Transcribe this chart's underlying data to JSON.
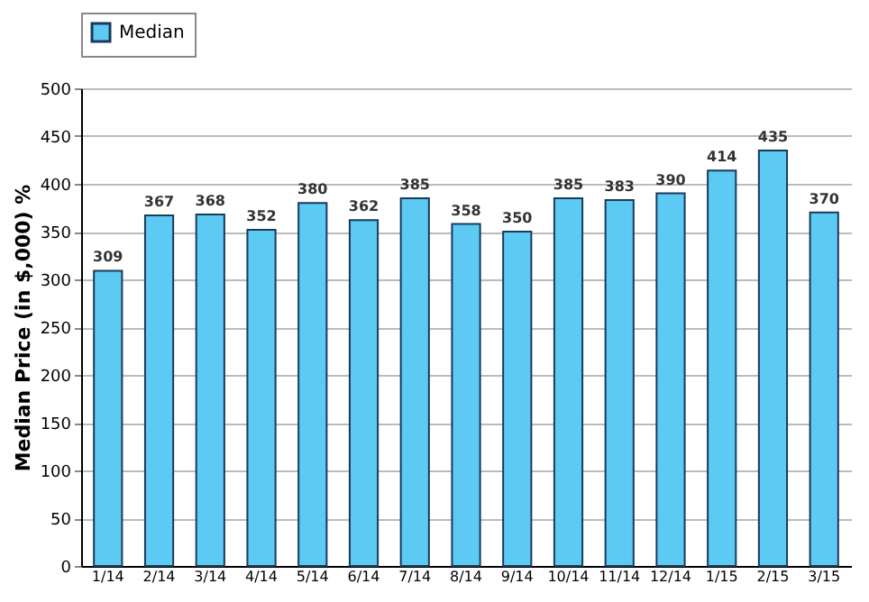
{
  "chart_data": {
    "type": "bar",
    "ylabel": "Median Price (in $,000) %",
    "categories": [
      "1/14",
      "2/14",
      "3/14",
      "4/14",
      "5/14",
      "6/14",
      "7/14",
      "8/14",
      "9/14",
      "10/14",
      "11/14",
      "12/14",
      "1/15",
      "2/15",
      "3/15"
    ],
    "series": [
      {
        "name": "Median",
        "color": "#5ccaf2",
        "values": [
          309,
          367,
          368,
          352,
          380,
          362,
          385,
          358,
          350,
          385,
          383,
          390,
          414,
          435,
          370
        ]
      }
    ],
    "ylim": [
      0,
      500
    ],
    "yticks": [
      0,
      50,
      100,
      150,
      200,
      250,
      300,
      350,
      400,
      450,
      500
    ],
    "grid": "y",
    "legend": "top",
    "data_labels": true
  }
}
